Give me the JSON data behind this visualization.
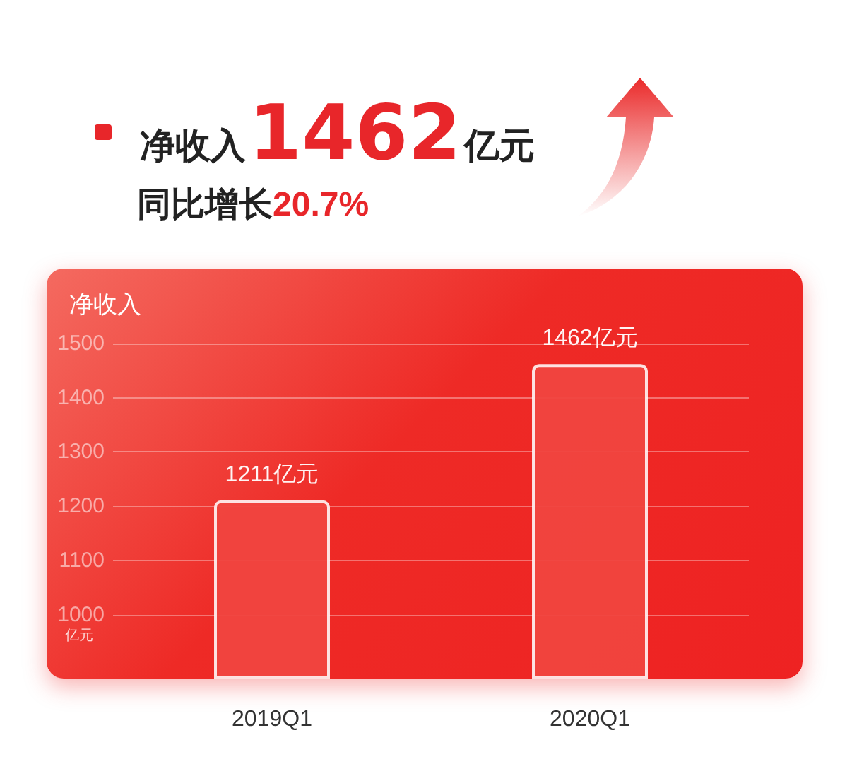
{
  "chart_data": {
    "type": "bar",
    "title": "净收入1462亿元",
    "subtitle": "同比增长20.7%",
    "ylabel": "净收入",
    "annotations": [
      "亿元"
    ],
    "categories": [
      "2019Q1",
      "2020Q1"
    ],
    "values": [
      1211,
      1462
    ],
    "value_labels": [
      "1211亿元",
      "1462亿元"
    ],
    "color": "#f0453f",
    "ylim": [
      885,
      1500
    ],
    "yticks": [
      1000,
      1100,
      1200,
      1300,
      1400,
      1500
    ],
    "grid": "y"
  }
}
